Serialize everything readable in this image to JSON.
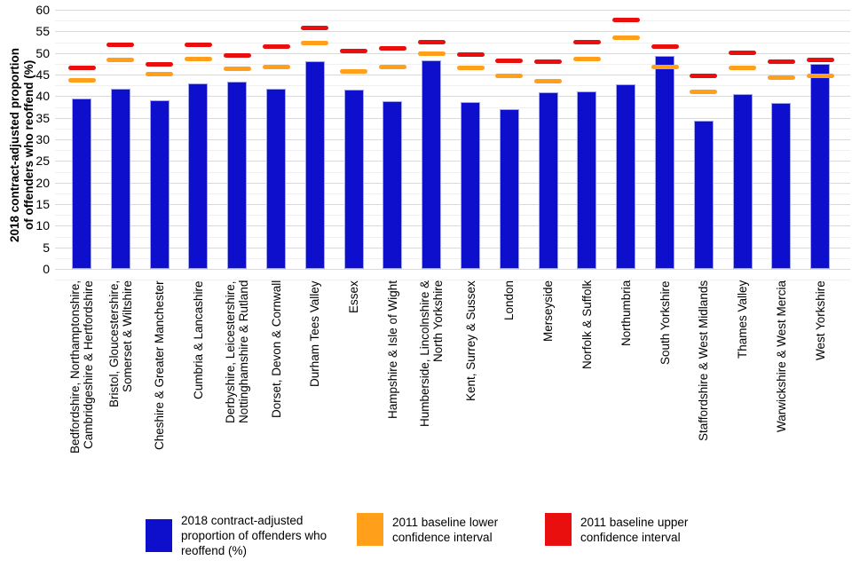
{
  "page": {
    "background": "#ffffff"
  },
  "chart_data": {
    "type": "bar",
    "title": "",
    "xlabel": "",
    "ylabel": "2018 contract-adjusted proportion\nof offenders who reoffend (%)",
    "ylim": [
      0,
      60
    ],
    "ytick_labels": [
      "0",
      "5",
      "10",
      "15",
      "20",
      "25",
      "30",
      "35",
      "40",
      "45",
      "50",
      "55",
      "60"
    ],
    "ytick_step": 5,
    "minor_gridline_step": 2.5,
    "grid": "horizontal",
    "legend_position": "bottom",
    "categories": [
      "Bedfordshire, Northamptonshire,\nCambridgeshire & Hertfordshire",
      "Bristol, Gloucestershire,\nSomerset & Wiltshire",
      "Cheshire & Greater Manchester",
      "Cumbria & Lancashire",
      "Derbyshire, Leicestershire,\nNottinghamshire & Rutland",
      "Dorset, Devon & Cornwall",
      "Durham Tees Valley",
      "Essex",
      "Hampshire & Isle of Wight",
      "Humberside, Lincolnshire &\nNorth Yorkshire",
      "Kent, Surrey & Sussex",
      "London",
      "Merseyside",
      "Norfolk & Suffolk",
      "Northumbria",
      "South Yorkshire",
      "Staffordshire & West Midlands",
      "Thames Valley",
      "Warwickshire & West Mercia",
      "West Yorkshire"
    ],
    "series": [
      {
        "name": "2018 contract-adjusted proportion of offenders who reoffend (%)",
        "mark": "bar",
        "color": "#0e0ecd",
        "values": [
          39.4,
          41.7,
          39.1,
          42.9,
          43.4,
          41.7,
          48.1,
          41.6,
          38.9,
          48.3,
          38.7,
          37.0,
          40.9,
          41.1,
          42.7,
          49.4,
          34.3,
          40.4,
          38.5,
          47.4
        ]
      },
      {
        "name": "2011 baseline lower confidence interval",
        "mark": "dash",
        "color": "#ff9f1a",
        "values": [
          43.7,
          48.5,
          45.1,
          48.7,
          46.3,
          46.7,
          52.3,
          45.7,
          46.7,
          49.8,
          46.5,
          44.7,
          43.4,
          48.7,
          53.5,
          46.7,
          41.1,
          46.6,
          44.2,
          44.6
        ]
      },
      {
        "name": "2011 baseline upper confidence interval",
        "mark": "dash",
        "color": "#e90f0f",
        "values": [
          46.6,
          51.9,
          47.3,
          51.8,
          49.4,
          51.4,
          55.8,
          50.5,
          51.1,
          52.6,
          49.7,
          48.2,
          48.0,
          52.5,
          57.6,
          51.4,
          44.7,
          50.1,
          47.9,
          48.5
        ]
      }
    ],
    "colors": {
      "major_gridline": "#d9d9d9",
      "minor_gridline": "#f0f0f0",
      "axis_text": "#000000"
    }
  }
}
